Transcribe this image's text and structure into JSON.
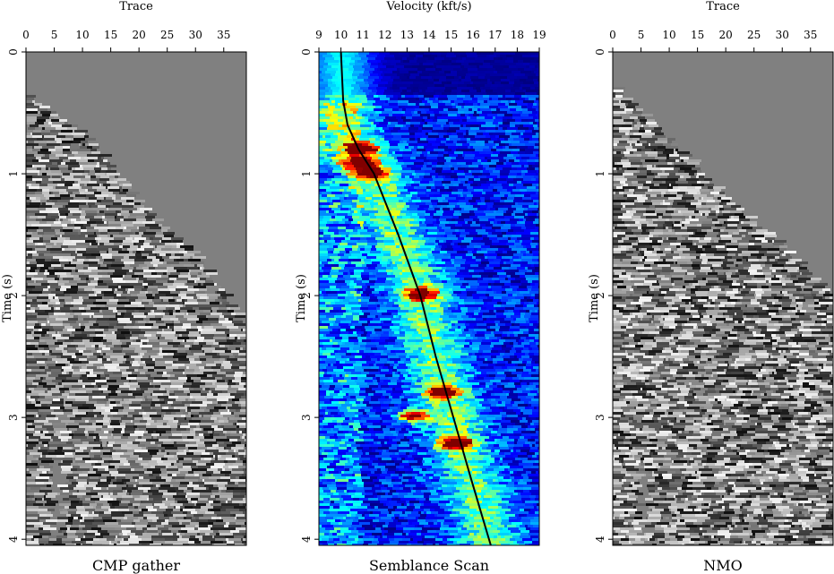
{
  "figure": "seismic-semblance-velocity-analysis",
  "chart_data": [
    {
      "type": "heatmap",
      "title": "CMP gather",
      "xlabel": "Trace",
      "ylabel": "Time (s)",
      "xlim": [
        0,
        39
      ],
      "ylim": [
        0,
        4.05
      ],
      "xticks": [
        "0",
        "5",
        "10",
        "15",
        "20",
        "25",
        "30",
        "35"
      ],
      "yticks": [
        "0",
        "1",
        "2",
        "3",
        "4"
      ],
      "colormap": "gray",
      "first_break": {
        "trace": [
          0,
          10,
          20,
          30,
          39
        ],
        "time": [
          0.35,
          0.65,
          1.25,
          1.68,
          2.25
        ]
      },
      "dead_zone": {
        "trace": [
          4,
          5.5
        ],
        "time": [
          3.35,
          3.95
        ]
      }
    },
    {
      "type": "heatmap",
      "title": "Semblance Scan",
      "xlabel": "Velocity (kft/s)",
      "ylabel": "Time (s)",
      "xlim": [
        9,
        19
      ],
      "ylim": [
        0,
        4.05
      ],
      "xticks": [
        "9",
        "10",
        "11",
        "12",
        "13",
        "14",
        "15",
        "16",
        "17",
        "18",
        "19"
      ],
      "yticks": [
        "0",
        "1",
        "2",
        "3",
        "4"
      ],
      "colormap": "jet",
      "picked_velocity": {
        "time": [
          0.0,
          0.4,
          0.6,
          0.8,
          1.0,
          1.5,
          2.0,
          2.5,
          3.0,
          3.5,
          4.05
        ],
        "velocity": [
          10.0,
          10.1,
          10.3,
          10.8,
          11.5,
          12.6,
          13.6,
          14.3,
          15.1,
          15.9,
          16.8
        ]
      },
      "hot_spots": [
        {
          "velocity": 11.0,
          "time": 0.78
        },
        {
          "velocity": 11.4,
          "time": 0.98
        },
        {
          "velocity": 13.7,
          "time": 1.98
        },
        {
          "velocity": 14.6,
          "time": 2.78
        },
        {
          "velocity": 13.3,
          "time": 2.98
        },
        {
          "velocity": 10.8,
          "time": 0.9
        },
        {
          "velocity": 15.2,
          "time": 3.2
        }
      ]
    },
    {
      "type": "heatmap",
      "title": "NMO",
      "xlabel": "Trace",
      "ylabel": "Time (s)",
      "xlim": [
        0,
        39
      ],
      "ylim": [
        0,
        4.05
      ],
      "xticks": [
        "0",
        "5",
        "10",
        "15",
        "20",
        "25",
        "30",
        "35"
      ],
      "yticks": [
        "0",
        "1",
        "2",
        "3",
        "4"
      ],
      "colormap": "gray",
      "first_break": {
        "trace": [
          0,
          10,
          20,
          30,
          39
        ],
        "time": [
          0.28,
          0.72,
          1.2,
          1.6,
          2.0
        ]
      },
      "dead_zone": {
        "trace": [
          4,
          5.5
        ],
        "time": [
          3.42,
          3.95
        ]
      }
    }
  ],
  "colors": {
    "background_gray": "#808080",
    "curve": "#000000",
    "jet_low": "#00007f",
    "jet_high": "#7f0000"
  }
}
